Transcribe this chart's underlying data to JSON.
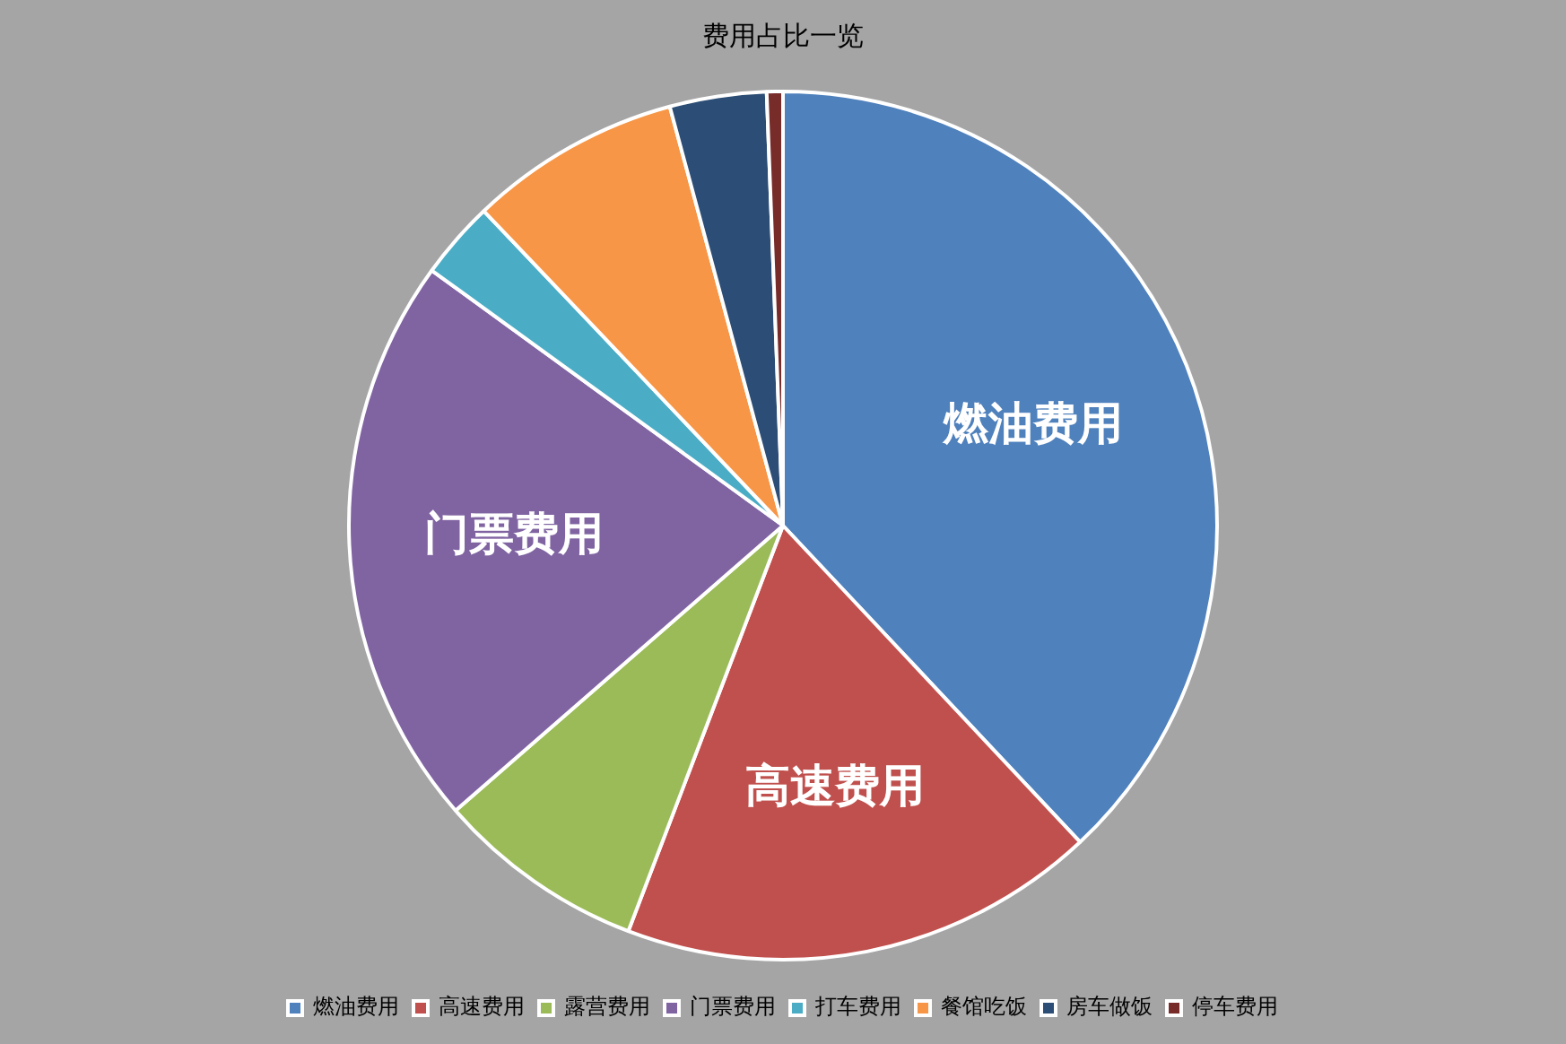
{
  "chart_data": {
    "type": "pie",
    "title": "费用占比一览",
    "categories": [
      "燃油费用",
      "高速费用",
      "露营费用",
      "门票费用",
      "打车费用",
      "餐馆吃饭",
      "房车做饭",
      "停车费用"
    ],
    "values": [
      38.0,
      17.8,
      7.8,
      21.4,
      2.9,
      7.9,
      3.6,
      0.6
    ],
    "colors": [
      "#4f81bd",
      "#c0504d",
      "#9bbb59",
      "#8064a2",
      "#4bacc6",
      "#f79646",
      "#2c4d75",
      "#772c2a"
    ],
    "value_labels": [
      "燃油费用",
      "高速费用",
      null,
      "门票费用",
      null,
      null,
      null,
      null
    ],
    "legend": "bottom"
  }
}
